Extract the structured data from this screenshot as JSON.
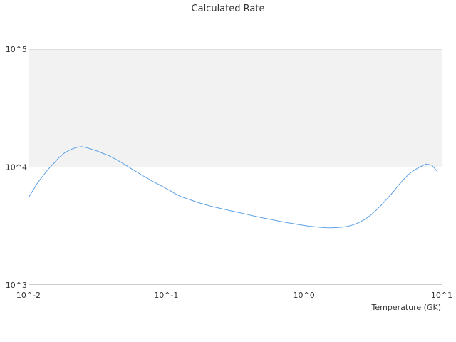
{
  "chart_data": {
    "type": "line",
    "title": "Calculated Rate",
    "xlabel": "Temperature (GK)",
    "ylabel": "",
    "xscale": "log",
    "yscale": "log",
    "xlim": [
      0.01,
      10
    ],
    "ylim": [
      1000,
      100000
    ],
    "x_tick_labels": [
      "10^-2",
      "10^-1",
      "10^0",
      "10^1"
    ],
    "y_tick_labels": [
      "10^3",
      "10^4",
      "10^5"
    ],
    "shaded_band": {
      "y_from": 10000,
      "y_to": 100000,
      "color": "#f2f2f2"
    },
    "grid": false,
    "legend": "none",
    "series": [
      {
        "color": "#5aa0e6",
        "x": [
          0.01,
          0.0115,
          0.0126,
          0.0138,
          0.0152,
          0.0166,
          0.0183,
          0.02,
          0.022,
          0.0241,
          0.0265,
          0.0291,
          0.0319,
          0.035,
          0.0384,
          0.0421,
          0.0463,
          0.0507,
          0.0557,
          0.0611,
          0.0671,
          0.0736,
          0.0808,
          0.0887,
          0.0973,
          0.1068,
          0.1172,
          0.1286,
          0.1412,
          0.1549,
          0.17,
          0.1866,
          0.2048,
          0.2248,
          0.2467,
          0.2707,
          0.2971,
          0.3261,
          0.3579,
          0.3928,
          0.4311,
          0.4731,
          0.5192,
          0.5699,
          0.6254,
          0.6864,
          0.7533,
          0.8267,
          0.9073,
          0.9958,
          1.0928,
          1.1994,
          1.3163,
          1.4446,
          1.5854,
          1.74,
          1.9096,
          2.0957,
          2.3,
          2.5242,
          2.7703,
          3.0404,
          3.3367,
          3.662,
          4.019,
          4.4108,
          4.8408,
          5.3127,
          5.8306,
          6.399,
          7.0228,
          7.7074,
          8.4587,
          9.2833
        ],
        "y": [
          5500,
          7200,
          8300,
          9500,
          10700,
          12000,
          13200,
          14000,
          14600,
          14900,
          14600,
          14100,
          13600,
          13000,
          12500,
          11800,
          11100,
          10400,
          9700,
          9100,
          8500,
          8000,
          7500,
          7100,
          6700,
          6300,
          5900,
          5600,
          5400,
          5200,
          5000,
          4850,
          4700,
          4580,
          4460,
          4350,
          4250,
          4150,
          4050,
          3950,
          3850,
          3760,
          3680,
          3600,
          3520,
          3450,
          3380,
          3320,
          3260,
          3200,
          3150,
          3120,
          3080,
          3060,
          3050,
          3070,
          3100,
          3150,
          3250,
          3400,
          3600,
          3900,
          4300,
          4800,
          5400,
          6100,
          7000,
          7900,
          8800,
          9500,
          10100,
          10600,
          10400,
          9200
        ]
      }
    ]
  }
}
